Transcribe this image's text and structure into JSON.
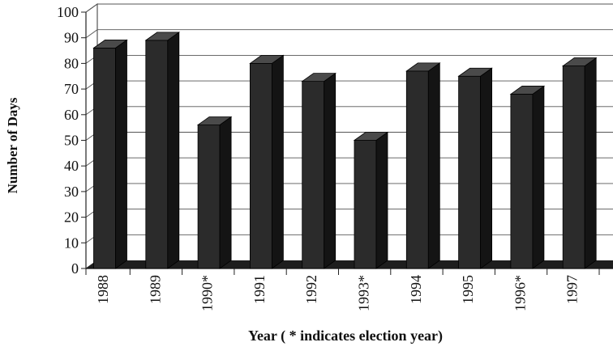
{
  "chart_data": {
    "type": "bar",
    "style": "3d-columns",
    "categories": [
      "1988",
      "1989",
      "1990*",
      "1991",
      "1992",
      "1993*",
      "1994",
      "1995",
      "1996*",
      "1997"
    ],
    "series": [
      {
        "values": [
          86,
          89,
          56,
          80,
          73,
          50,
          77,
          75,
          68,
          79
        ]
      }
    ],
    "ylim": [
      0,
      100
    ],
    "yticks": [
      "0",
      "10",
      "20",
      "30",
      "40",
      "50",
      "60",
      "70",
      "80",
      "90",
      "100"
    ],
    "ylabel": "Number of Days",
    "xlabel": "Year ( * indicates election year)",
    "grid": true,
    "legend": "none",
    "colors": {
      "bar_front": "#2b2b2b",
      "bar_side": "#141414",
      "bar_top": "#4a4a4a",
      "grid": "#555555",
      "floor": "#1e1e1e"
    }
  }
}
